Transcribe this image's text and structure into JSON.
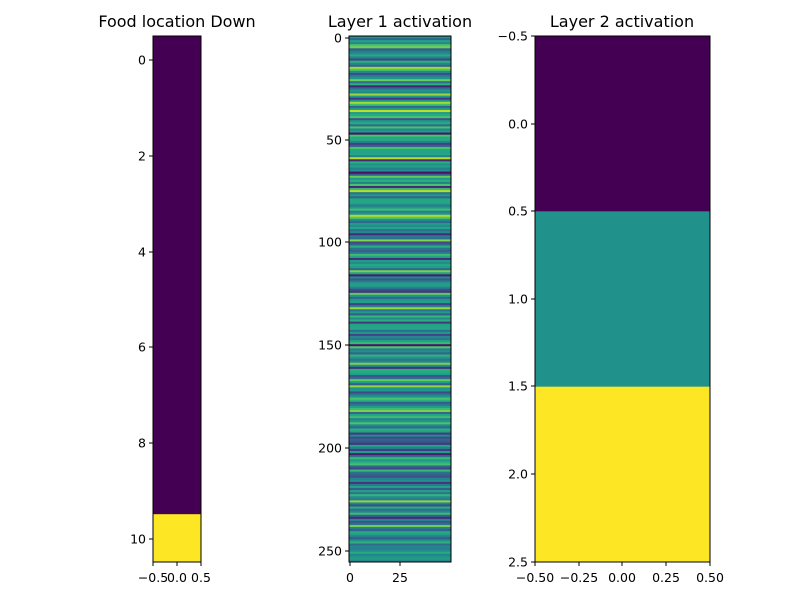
{
  "chart_data": [
    {
      "type": "heatmap",
      "title": "Food location Down",
      "colormap": "viridis",
      "xlim": [
        -0.5,
        0.5
      ],
      "ylim": [
        10.5,
        -0.5
      ],
      "y_inverted": true,
      "xticks": [
        "−0.5",
        "0.0",
        "0.5"
      ],
      "yticks": [
        "0",
        "2",
        "4",
        "6",
        "8",
        "10"
      ],
      "rows": 11,
      "cols": 1,
      "values": [
        0,
        0,
        0,
        0,
        0,
        0,
        0,
        0,
        0,
        0,
        1
      ]
    },
    {
      "type": "heatmap",
      "title": "Layer 1 activation",
      "colormap": "viridis",
      "xlim": [
        -0.5,
        49.5
      ],
      "ylim": [
        255.5,
        -0.5
      ],
      "y_inverted": true,
      "xticks": [
        "0",
        "25"
      ],
      "yticks": [
        "0",
        "50",
        "100",
        "150",
        "200",
        "250"
      ],
      "rows": 256,
      "cols": 50,
      "values": [
        0.51,
        0.33,
        0.58,
        0.46,
        0.72,
        0.78,
        0.29,
        0.41,
        0.48,
        0.61,
        0.42,
        0.22,
        0.63,
        0.47,
        0.33,
        0.85,
        0.71,
        0.46,
        0.24,
        0.43,
        0.52,
        0.77,
        0.36,
        0.63,
        0.1,
        0.36,
        0.52,
        0.47,
        0.85,
        0.53,
        0.16,
        0.51,
        0.86,
        0.69,
        0.33,
        0.54,
        0.9,
        0.55,
        0.61,
        0.71,
        0.25,
        0.54,
        0.61,
        0.34,
        0.7,
        0.46,
        0.54,
        0.05,
        0.71,
        0.6,
        0.61,
        0.46,
        0.19,
        0.31,
        0.71,
        0.59,
        0.57,
        0.6,
        0.44,
        0.89,
        0.11,
        0.63,
        0.5,
        0.57,
        0.42,
        0.48,
        0.05,
        0.28,
        0.76,
        0.53,
        0.63,
        0.44,
        0.71,
        0.12,
        0.67,
        0.89,
        0.38,
        0.53,
        0.32,
        0.59,
        0.6,
        0.57,
        0.41,
        0.52,
        0.69,
        0.42,
        0.52,
        0.87,
        0.73,
        0.49,
        0.34,
        0.54,
        0.48,
        0.59,
        0.36,
        0.47,
        0.12,
        0.41,
        0.36,
        0.81,
        0.22,
        0.33,
        0.63,
        0.38,
        0.31,
        0.39,
        0.68,
        0.59,
        0.13,
        0.54,
        0.48,
        0.6,
        0.55,
        0.33,
        0.8,
        0.57,
        0.08,
        0.45,
        0.27,
        0.42,
        0.55,
        0.56,
        0.43,
        0.24,
        0.16,
        0.75,
        0.51,
        0.34,
        0.53,
        0.57,
        0.19,
        0.44,
        0.84,
        0.38,
        0.54,
        0.29,
        0.66,
        0.47,
        0.63,
        0.17,
        0.58,
        0.59,
        0.6,
        0.35,
        0.53,
        0.21,
        0.45,
        0.4,
        0.58,
        0.67,
        0.06,
        0.73,
        0.42,
        0.49,
        0.31,
        0.64,
        0.52,
        0.38,
        0.45,
        0.8,
        0.48,
        0.14,
        0.63,
        0.61,
        0.56,
        0.27,
        0.36,
        0.75,
        0.55,
        0.29,
        0.83,
        0.5,
        0.52,
        0.22,
        0.4,
        0.52,
        0.71,
        0.63,
        0.29,
        0.39,
        0.55,
        0.68,
        0.8,
        0.33,
        0.6,
        0.68,
        0.44,
        0.52,
        0.71,
        0.47,
        0.34,
        0.62,
        0.58,
        0.17,
        0.47,
        0.23,
        0.32,
        0.27,
        0.16,
        0.58,
        0.42,
        0.18,
        0.55,
        0.09,
        0.36,
        0.68,
        0.53,
        0.62,
        0.7,
        0.33,
        0.2,
        0.67,
        0.37,
        0.31,
        0.25,
        0.43,
        0.5,
        0.15,
        0.41,
        0.56,
        0.29,
        0.57,
        0.39,
        0.65,
        0.48,
        0.41,
        0.83,
        0.44,
        0.24,
        0.62,
        0.36,
        0.45,
        0.68,
        0.31,
        0.12,
        0.46,
        0.27,
        0.37,
        0.78,
        0.4,
        0.31,
        0.61,
        0.56,
        0.43,
        0.29,
        0.5,
        0.64,
        0.35,
        0.45,
        0.42,
        0.48,
        0.61,
        0.44,
        0.52,
        0.54,
        0.47
      ]
    },
    {
      "type": "heatmap",
      "title": "Layer 2 activation",
      "colormap": "viridis",
      "xlim": [
        -0.5,
        0.5
      ],
      "ylim": [
        2.5,
        -0.5
      ],
      "y_inverted": true,
      "xticks": [
        "−0.50",
        "−0.25",
        "0.00",
        "0.25",
        "0.50"
      ],
      "yticks": [
        "−0.5",
        "0.0",
        "0.5",
        "1.0",
        "1.5",
        "2.0",
        "2.5"
      ],
      "rows": 3,
      "cols": 1,
      "values": [
        0,
        0.5,
        1
      ]
    }
  ]
}
